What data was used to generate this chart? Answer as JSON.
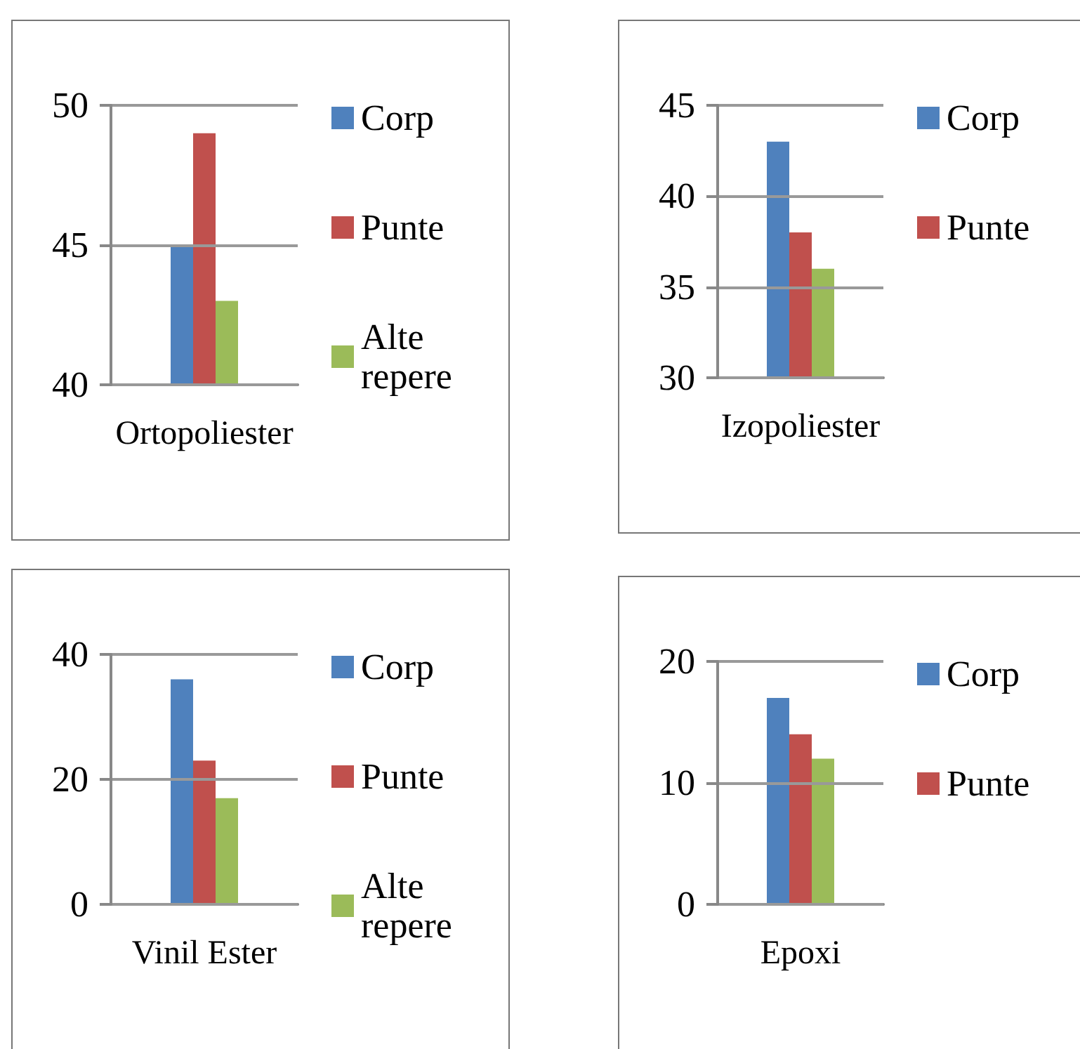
{
  "chart_data": [
    {
      "type": "bar",
      "categories": [
        "Ortopoliester"
      ],
      "series": [
        {
          "name": "Corp",
          "color": "#4f81bd",
          "values": [
            45
          ]
        },
        {
          "name": "Punte",
          "color": "#c0504d",
          "values": [
            49
          ]
        },
        {
          "name": "Alte repere",
          "color": "#9bbb59",
          "values": [
            43
          ]
        }
      ],
      "ylim": [
        40,
        50
      ],
      "yticks": [
        40,
        45,
        50
      ],
      "grid": "y",
      "legend": "right"
    },
    {
      "type": "bar",
      "categories": [
        "Izopoliester"
      ],
      "series": [
        {
          "name": "Corp",
          "color": "#4f81bd",
          "values": [
            43
          ]
        },
        {
          "name": "Punte",
          "color": "#c0504d",
          "values": [
            38
          ]
        },
        {
          "color": "#9bbb59",
          "values": [
            36
          ]
        }
      ],
      "ylim": [
        30,
        45
      ],
      "yticks": [
        30,
        35,
        40,
        45
      ],
      "grid": "y",
      "legend": "right"
    },
    {
      "type": "bar",
      "categories": [
        "Vinil Ester"
      ],
      "series": [
        {
          "name": "Corp",
          "color": "#4f81bd",
          "values": [
            36
          ]
        },
        {
          "name": "Punte",
          "color": "#c0504d",
          "values": [
            23
          ]
        },
        {
          "name": "Alte repere",
          "color": "#9bbb59",
          "values": [
            17
          ]
        }
      ],
      "ylim": [
        0,
        40
      ],
      "yticks": [
        0,
        20,
        40
      ],
      "grid": "y",
      "legend": "right"
    },
    {
      "type": "bar",
      "categories": [
        "Epoxi"
      ],
      "series": [
        {
          "name": "Corp",
          "color": "#4f81bd",
          "values": [
            17
          ]
        },
        {
          "name": "Punte",
          "color": "#c0504d",
          "values": [
            14
          ]
        },
        {
          "color": "#9bbb59",
          "values": [
            12
          ]
        }
      ],
      "ylim": [
        0,
        20
      ],
      "yticks": [
        0,
        10,
        20
      ],
      "grid": "y",
      "legend": "right"
    }
  ]
}
